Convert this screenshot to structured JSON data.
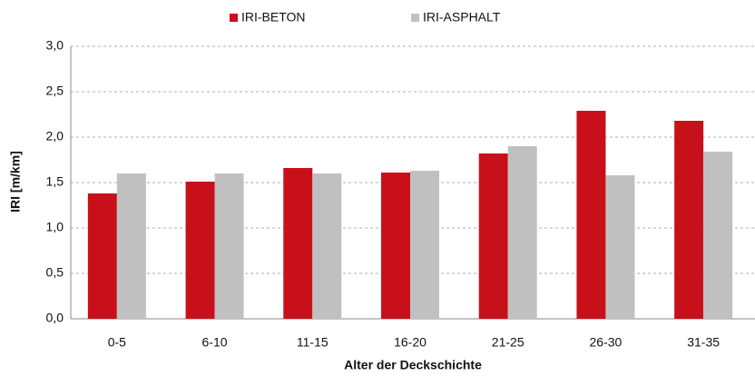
{
  "chart_data": {
    "type": "bar",
    "ylabel": "IRI [m/km]",
    "xlabel": "Alter der Deckschichte",
    "categories": [
      "0-5",
      "6-10",
      "11-15",
      "16-20",
      "21-25",
      "26-30",
      "31-35"
    ],
    "series": [
      {
        "name": "IRI-BETON",
        "color": "#c8101a",
        "values": [
          1.38,
          1.51,
          1.66,
          1.61,
          1.82,
          2.29,
          2.18
        ]
      },
      {
        "name": "IRI-ASPHALT",
        "color": "#c0c0c0",
        "values": [
          1.6,
          1.6,
          1.6,
          1.63,
          1.9,
          1.58,
          1.84
        ]
      }
    ],
    "ylim": [
      0,
      3
    ],
    "yticks": [
      {
        "value": 0,
        "label": "0,0"
      },
      {
        "value": 0.5,
        "label": "0,5"
      },
      {
        "value": 1,
        "label": "1,0"
      },
      {
        "value": 1.5,
        "label": "1,5"
      },
      {
        "value": 2,
        "label": "2,0"
      },
      {
        "value": 2.5,
        "label": "2,5"
      },
      {
        "value": 3,
        "label": "3,0"
      }
    ],
    "grid": true,
    "legend": "top"
  }
}
